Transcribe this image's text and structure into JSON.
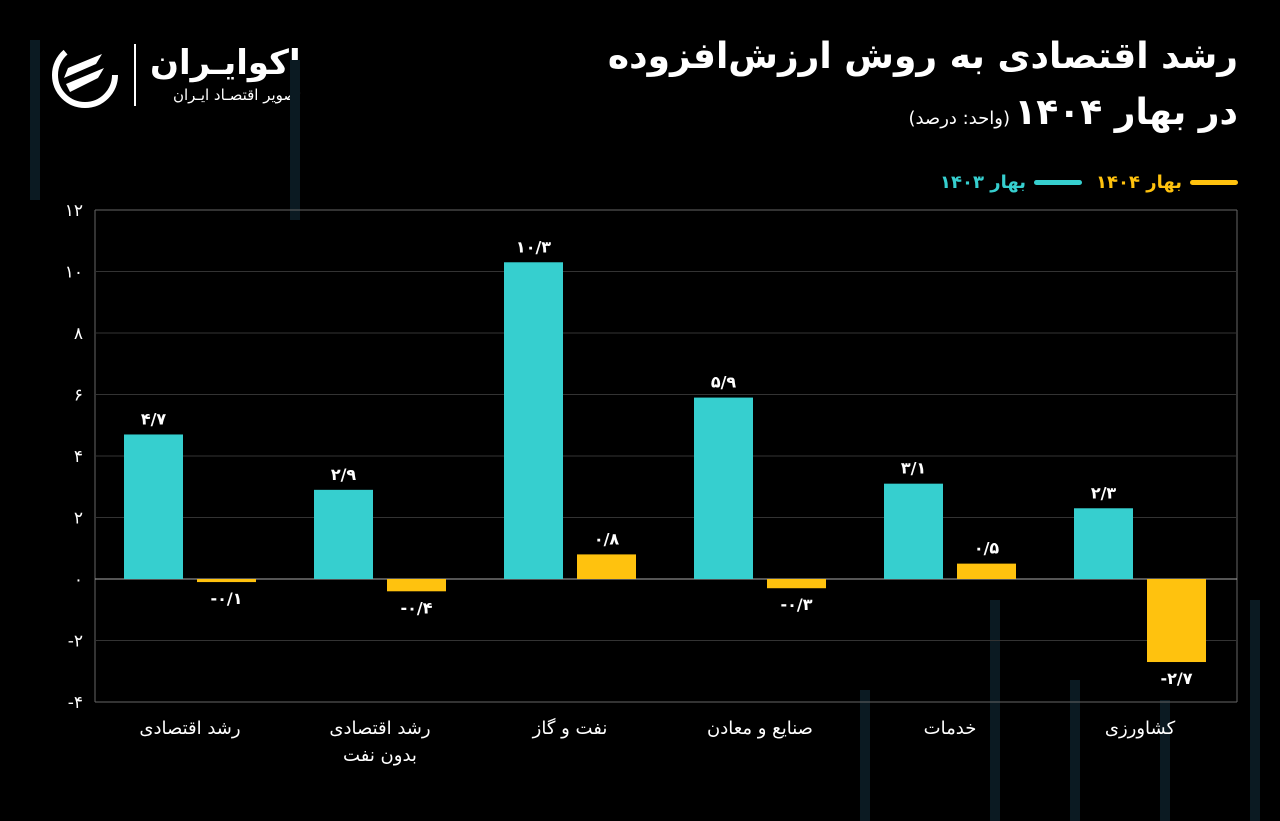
{
  "header": {
    "title_line1": "رشد اقتصادی به روش ارزش‌افزوده",
    "title_line2": "در بهار ۱۴۰۴",
    "unit": "(واحد: درصد)"
  },
  "logo": {
    "name": "اکوایـران",
    "tagline": "تصویر اقتصـاد ایـران"
  },
  "colors": {
    "s1403": "#36CFCF",
    "s1404": "#FFC20E",
    "background": "#000000"
  },
  "chart_data": {
    "type": "bar",
    "title": "رشد اقتصادی به روش ارزش‌افزوده در بهار ۱۴۰۴",
    "ylabel": "",
    "ylim": [
      -4,
      12
    ],
    "yticks": [
      12,
      10,
      8,
      6,
      4,
      2,
      0,
      -2,
      -4
    ],
    "ytick_labels": [
      "۱۲",
      "۱۰",
      "۸",
      "۶",
      "۴",
      "۲",
      "۰",
      "-۲",
      "-۴"
    ],
    "legend_position": "top-right",
    "categories": [
      [
        "رشد اقتصادی"
      ],
      [
        "رشد اقتصادی",
        "بدون نفت"
      ],
      [
        "نفت و گاز"
      ],
      [
        "صنایع و معادن"
      ],
      [
        "خدمات"
      ],
      [
        "کشاورزی"
      ]
    ],
    "series": [
      {
        "name": "بهار ۱۴۰۳",
        "color": "#36CFCF",
        "values": [
          4.7,
          2.9,
          10.3,
          5.9,
          3.1,
          2.3
        ],
        "labels": [
          "۴/۷",
          "۲/۹",
          "۱۰/۳",
          "۵/۹",
          "۳/۱",
          "۲/۳"
        ]
      },
      {
        "name": "بهار ۱۴۰۴",
        "color": "#FFC20E",
        "values": [
          -0.1,
          -0.4,
          0.8,
          -0.3,
          0.5,
          -2.7
        ],
        "labels": [
          "-۰/۱",
          "-۰/۴",
          "۰/۸",
          "-۰/۳",
          "۰/۵",
          "-۲/۷"
        ]
      }
    ]
  }
}
